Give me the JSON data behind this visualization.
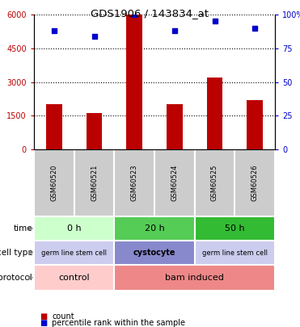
{
  "title": "GDS1906 / 143834_at",
  "samples": [
    "GSM60520",
    "GSM60521",
    "GSM60523",
    "GSM60524",
    "GSM60525",
    "GSM60526"
  ],
  "counts": [
    2000,
    1600,
    6000,
    2000,
    3200,
    2200
  ],
  "percentile_ranks": [
    88,
    84,
    100,
    88,
    95,
    90
  ],
  "ylim_left": [
    0,
    6000
  ],
  "ylim_right": [
    0,
    100
  ],
  "yticks_left": [
    0,
    1500,
    3000,
    4500,
    6000
  ],
  "ytick_labels_left": [
    "0",
    "1500",
    "3000",
    "4500",
    "6000"
  ],
  "yticks_right": [
    0,
    25,
    50,
    75,
    100
  ],
  "ytick_labels_right": [
    "0",
    "25",
    "50",
    "75",
    "100%"
  ],
  "bar_color": "#bb0000",
  "dot_color": "#0000cc",
  "bar_width": 0.4,
  "time_labels": [
    {
      "label": "0 h",
      "start": 0,
      "end": 2,
      "color": "#ccffcc"
    },
    {
      "label": "20 h",
      "start": 2,
      "end": 4,
      "color": "#55cc55"
    },
    {
      "label": "50 h",
      "start": 4,
      "end": 6,
      "color": "#33bb33"
    }
  ],
  "cell_type_labels": [
    {
      "label": "germ line stem cell",
      "start": 0,
      "end": 2,
      "color": "#ccccee"
    },
    {
      "label": "cystocyte",
      "start": 2,
      "end": 4,
      "color": "#8888cc"
    },
    {
      "label": "germ line stem cell",
      "start": 4,
      "end": 6,
      "color": "#ccccee"
    }
  ],
  "protocol_labels": [
    {
      "label": "control",
      "start": 0,
      "end": 2,
      "color": "#ffcccc"
    },
    {
      "label": "bam induced",
      "start": 2,
      "end": 6,
      "color": "#ee8888"
    }
  ],
  "sample_bg_color": "#cccccc",
  "legend_count_color": "#bb0000",
  "legend_dot_color": "#0000cc",
  "fig_width": 3.71,
  "fig_height": 4.05,
  "fig_dpi": 100
}
